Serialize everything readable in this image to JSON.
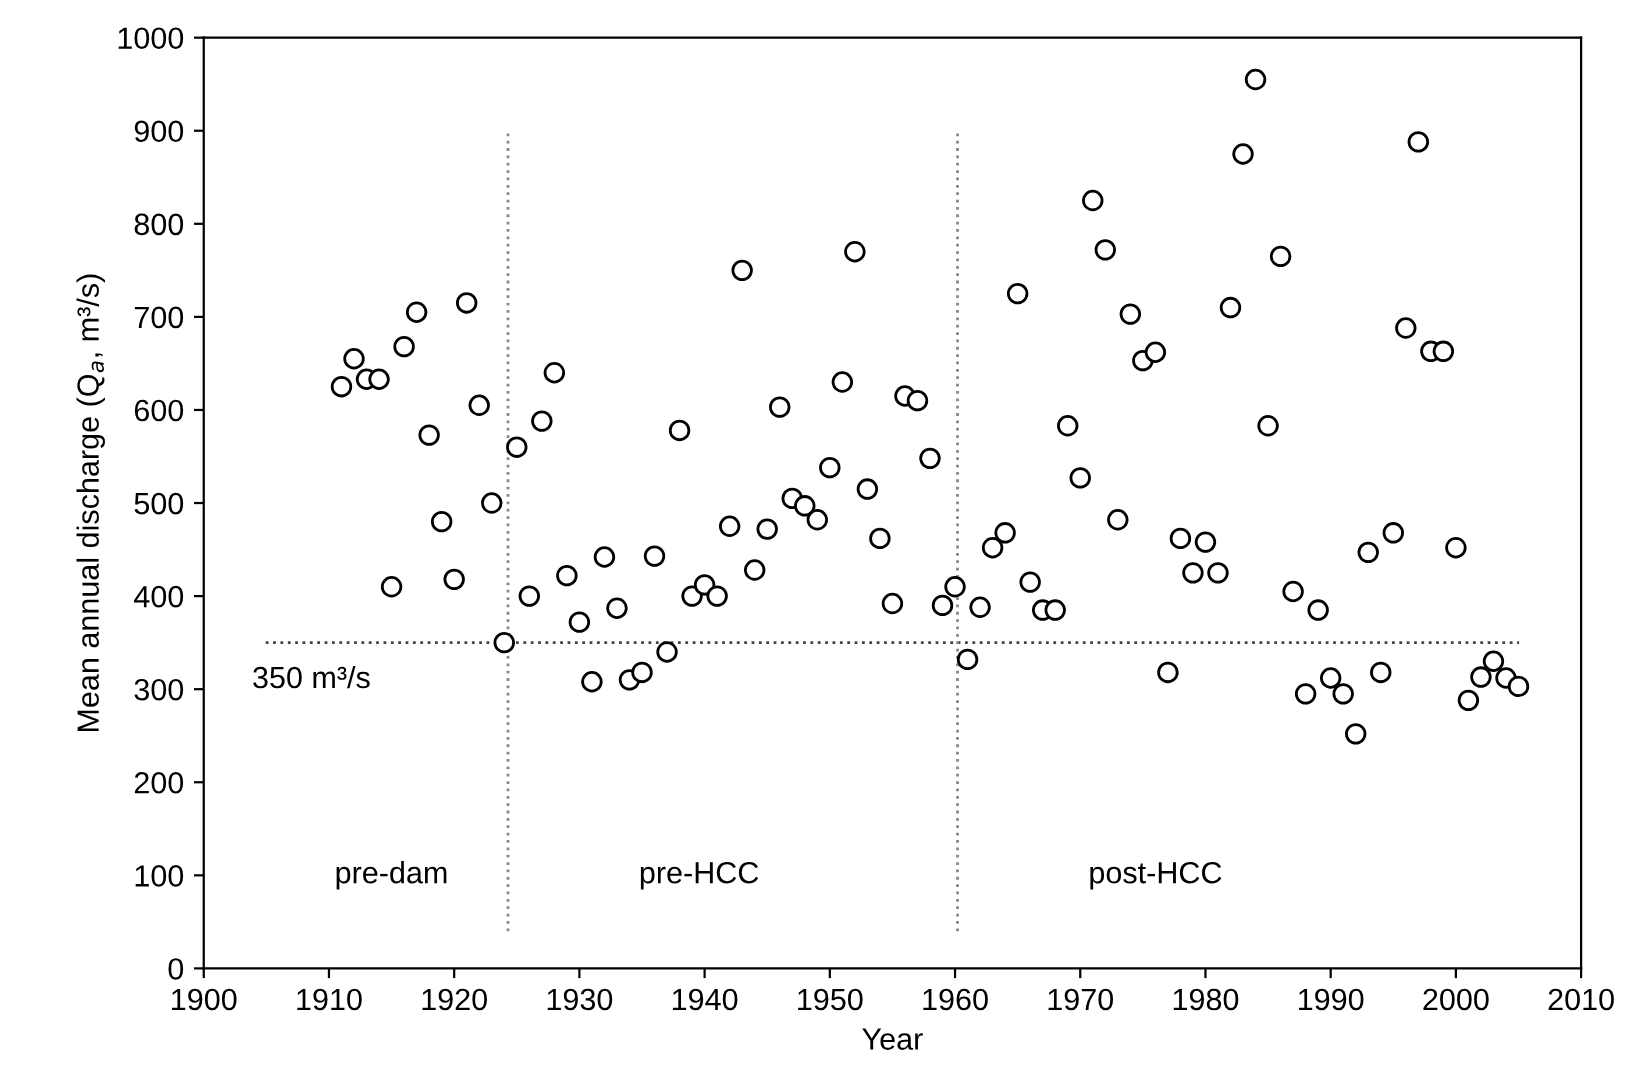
{
  "chart_data": {
    "type": "scatter",
    "xlabel": "Year",
    "ylabel": "Mean annual discharge (Q$_{a}$, m³/s)",
    "x": [
      1911,
      1912,
      1913,
      1914,
      1915,
      1916,
      1917,
      1918,
      1919,
      1920,
      1921,
      1922,
      1923,
      1924,
      1925,
      1926,
      1927,
      1928,
      1929,
      1930,
      1931,
      1932,
      1933,
      1934,
      1935,
      1936,
      1937,
      1938,
      1939,
      1940,
      1941,
      1942,
      1943,
      1944,
      1945,
      1946,
      1947,
      1948,
      1949,
      1950,
      1951,
      1952,
      1953,
      1954,
      1955,
      1956,
      1957,
      1958,
      1959,
      1960,
      1961,
      1962,
      1963,
      1964,
      1965,
      1966,
      1967,
      1968,
      1969,
      1970,
      1971,
      1972,
      1973,
      1974,
      1975,
      1976,
      1977,
      1978,
      1979,
      1980,
      1981,
      1982,
      1983,
      1984,
      1985,
      1986,
      1987,
      1988,
      1989,
      1990,
      1991,
      1992,
      1993,
      1994,
      1995,
      1996,
      1997,
      1998,
      1999,
      2000,
      2001,
      2002,
      2003,
      2004,
      2005
    ],
    "series": [
      {
        "color": "#000000",
        "values": [
          625,
          655,
          633,
          633,
          410,
          668,
          705,
          573,
          480,
          418,
          715,
          605,
          500,
          350,
          560,
          400,
          588,
          640,
          422,
          372,
          308,
          442,
          387,
          310,
          318,
          443,
          340,
          578,
          400,
          412,
          400,
          475,
          750,
          428,
          472,
          603,
          505,
          497,
          482,
          538,
          630,
          770,
          515,
          462,
          392,
          615,
          610,
          548,
          390,
          410,
          332,
          388,
          452,
          468,
          725,
          415,
          385,
          385,
          583,
          527,
          825,
          772,
          482,
          703,
          653,
          662,
          318,
          462,
          425,
          458,
          425,
          710,
          875,
          955,
          583,
          765,
          405,
          295,
          385,
          312,
          295,
          252,
          447,
          318,
          468,
          688,
          888,
          663,
          663,
          452,
          288,
          313,
          330,
          312,
          303
        ]
      }
    ],
    "marker": "circle",
    "xlim": [
      1900,
      2010
    ],
    "xticks": [
      1900,
      1910,
      1920,
      1930,
      1940,
      1950,
      1960,
      1970,
      1980,
      1990,
      2000,
      2010
    ],
    "ylim": [
      0,
      1000
    ],
    "yticks": [
      0,
      100,
      200,
      300,
      400,
      500,
      600,
      700,
      800,
      900,
      1000
    ],
    "ref_lines": [
      {
        "axis": "y",
        "value": 350,
        "label": "350 m³/s",
        "color": "#444444",
        "line_style": "dotted"
      },
      {
        "axis": "x",
        "value": 1924.3,
        "color": "#888888",
        "line_style": "dotted"
      },
      {
        "axis": "x",
        "value": 1960.2,
        "color": "#888888",
        "line_style": "dotted"
      }
    ],
    "annotations": [
      "pre-dam",
      "pre-HCC",
      "post-HCC"
    ],
    "grid": false,
    "legend": false
  }
}
